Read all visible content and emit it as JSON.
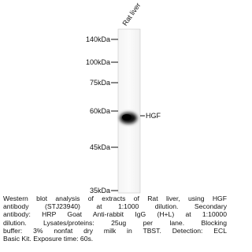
{
  "lane_label": "Rat liver",
  "markers": [
    "140kDa",
    "100kDa",
    "75kDa",
    "60kDa",
    "45kDa",
    "35kDa"
  ],
  "band_label": "HGF",
  "caption": [
    "Western blot analysis of extracts of Rat liver, using HGF",
    "antibody (STJ23940) at 1:1000 dilution. Secondary",
    "antibody: HRP Goat Anti-rabbit IgG (H+L) at 1:10000",
    "dilution. Lysates/proteins: 25ug per lane. Blocking",
    "buffer: 3% nonfat dry milk in TBST. Detection: ECL",
    "Basic Kit. Exposure time: 60s."
  ]
}
